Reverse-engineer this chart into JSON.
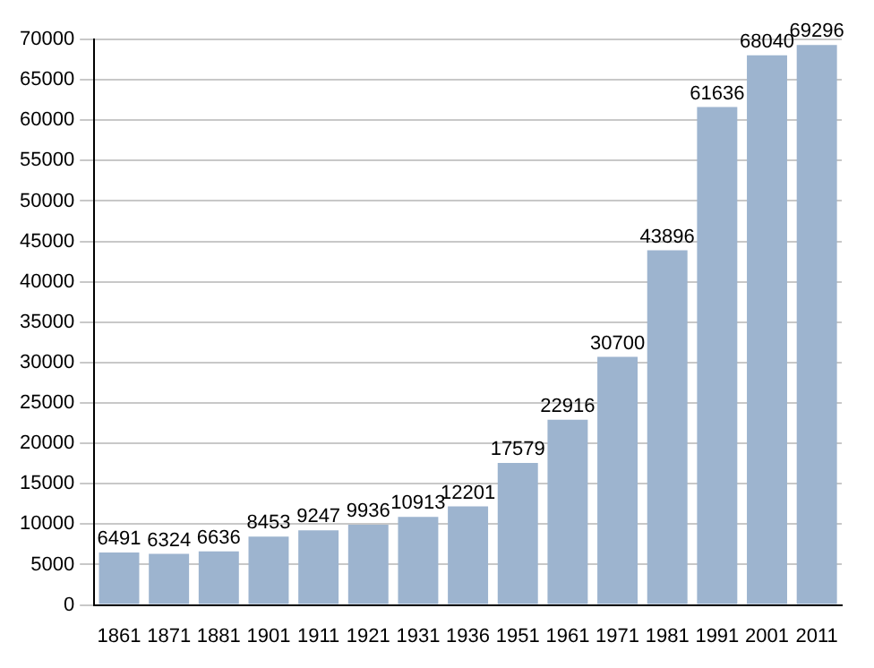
{
  "chart_data": {
    "type": "bar",
    "categories": [
      "1861",
      "1871",
      "1881",
      "1901",
      "1911",
      "1921",
      "1931",
      "1936",
      "1951",
      "1961",
      "1971",
      "1981",
      "1991",
      "2001",
      "2011"
    ],
    "values": [
      6491,
      6324,
      6636,
      8453,
      9247,
      9936,
      10913,
      12201,
      17579,
      22916,
      30700,
      43896,
      61636,
      68040,
      69296
    ],
    "color": "#9db4cf",
    "ylim": [
      0,
      70000
    ],
    "yticks": [
      0,
      5000,
      10000,
      15000,
      20000,
      25000,
      30000,
      35000,
      40000,
      45000,
      50000,
      55000,
      60000,
      65000,
      70000
    ],
    "grid": "y",
    "data_labels": true
  }
}
